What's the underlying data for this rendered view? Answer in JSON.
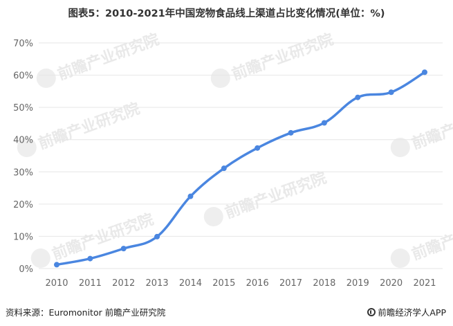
{
  "title": "图表5：2010-2021年中国宠物食品线上渠道占比变化情况(单位：%)",
  "footer": {
    "source": "资料来源：Euromonitor 前瞻产业研究院",
    "brand": "前瞻经济学人APP"
  },
  "watermark": {
    "text": "前瞻产业研究院"
  },
  "colors": {
    "line": "#4a86e0",
    "grid": "#e6e6e6",
    "axis_text": "#666666"
  },
  "chart_data": {
    "type": "line",
    "title": "图表5：2010-2021年中国宠物食品线上渠道占比变化情况(单位：%)",
    "xlabel": "",
    "ylabel": "",
    "categories": [
      "2010",
      "2011",
      "2012",
      "2013",
      "2014",
      "2015",
      "2016",
      "2017",
      "2018",
      "2019",
      "2020",
      "2021"
    ],
    "series": [
      {
        "values": [
          1.2,
          3.1,
          6.2,
          9.9,
          22.4,
          31.1,
          37.4,
          42.1,
          45.2,
          53.1,
          54.7,
          60.9
        ]
      }
    ],
    "ylim": [
      0,
      70
    ],
    "yticks": [
      "0%",
      "10%",
      "20%",
      "30%",
      "40%",
      "50%",
      "60%",
      "70%"
    ],
    "grid": true,
    "legend": "none",
    "smooth": true
  }
}
